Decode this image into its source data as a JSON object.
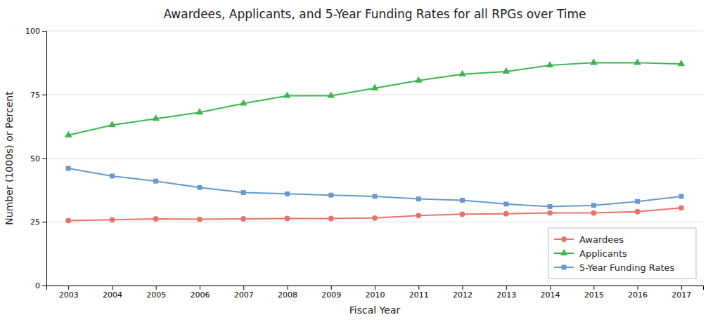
{
  "chart_data": {
    "type": "line",
    "title": "Awardees, Applicants, and 5-Year Funding Rates for all RPGs over Time",
    "xlabel": "Fiscal Year",
    "ylabel": "Number (1000s) or Percent",
    "x": [
      2003,
      2004,
      2005,
      2006,
      2007,
      2008,
      2009,
      2010,
      2011,
      2012,
      2013,
      2014,
      2015,
      2016,
      2017
    ],
    "series": [
      {
        "name": "Awardees",
        "color": "#E8736A",
        "marker": "circle",
        "values": [
          25.5,
          25.8,
          26.2,
          26.0,
          26.2,
          26.3,
          26.3,
          26.5,
          27.5,
          28.0,
          28.2,
          28.5,
          28.5,
          29.0,
          30.5
        ]
      },
      {
        "name": "Applicants",
        "color": "#3CB550",
        "marker": "triangle",
        "values": [
          59.0,
          63.0,
          65.5,
          68.0,
          71.5,
          74.5,
          74.5,
          77.5,
          80.5,
          83.0,
          84.0,
          86.5,
          87.5,
          87.5,
          87.0
        ]
      },
      {
        "name": "5-Year Funding Rates",
        "color": "#6699CC",
        "marker": "square",
        "values": [
          46.0,
          43.0,
          41.0,
          38.5,
          36.5,
          36.0,
          35.5,
          35.0,
          34.0,
          33.5,
          32.0,
          31.0,
          31.5,
          33.0,
          35.0
        ]
      }
    ],
    "xlim": [
      2002.5,
      2017.5
    ],
    "xticks": [
      2003,
      2004,
      2005,
      2006,
      2007,
      2008,
      2009,
      2010,
      2011,
      2012,
      2013,
      2014,
      2015,
      2016,
      2017
    ],
    "ylim": [
      0,
      100
    ],
    "yticks": [
      0,
      25,
      50,
      75,
      100
    ],
    "grid": true,
    "legend": "lower right"
  }
}
